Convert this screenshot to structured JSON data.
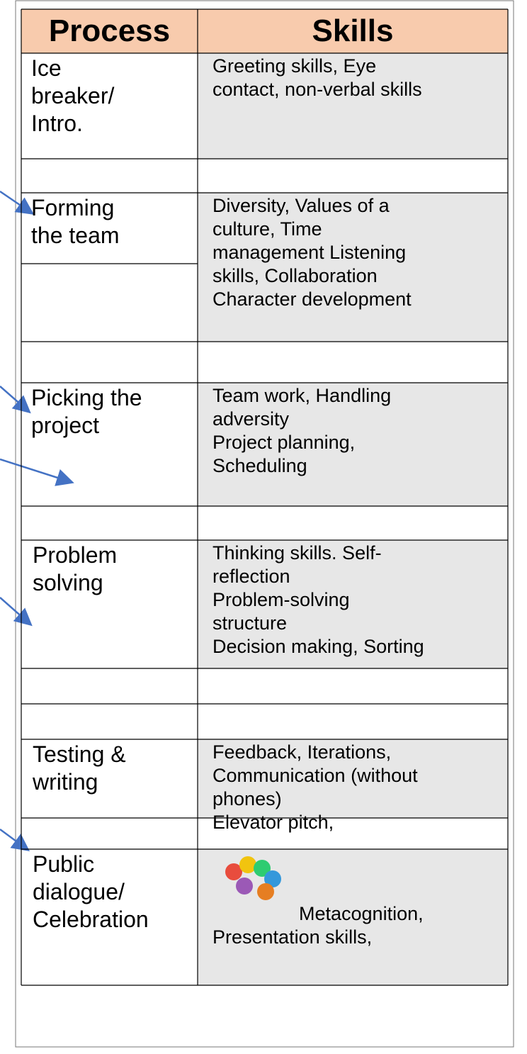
{
  "header": {
    "process": "Process",
    "skills": "Skills"
  },
  "rows": [
    {
      "process": [
        "Ice",
        "breaker/",
        "Intro."
      ],
      "skills": [
        "Greeting skills, Eye",
        "contact, non-verbal skills"
      ]
    },
    {
      "process": [
        "Forming",
        "the team"
      ],
      "skills": [
        "Diversity, Values of a",
        "culture, Time",
        "management Listening",
        "skills, Collaboration",
        "Character development"
      ]
    },
    {
      "process": [
        "Picking the",
        "project"
      ],
      "skills": [
        "Team work, Handling",
        "adversity",
        "Project planning,",
        "Scheduling"
      ]
    },
    {
      "process": [
        "Problem",
        "solving"
      ],
      "skills": [
        "Thinking skills. Self-",
        "reflection",
        "Problem-solving",
        "structure",
        "Decision making, Sorting"
      ]
    },
    {
      "process": [
        "Testing &",
        "writing"
      ],
      "skills": [
        "Feedback, Iterations,",
        "Communication (without",
        "phones)",
        "Elevator pitch,"
      ]
    },
    {
      "process": [
        "Public",
        "dialogue/",
        "Celebration"
      ],
      "skills": [
        "Metacognition,",
        "Presentation skills,"
      ]
    }
  ]
}
